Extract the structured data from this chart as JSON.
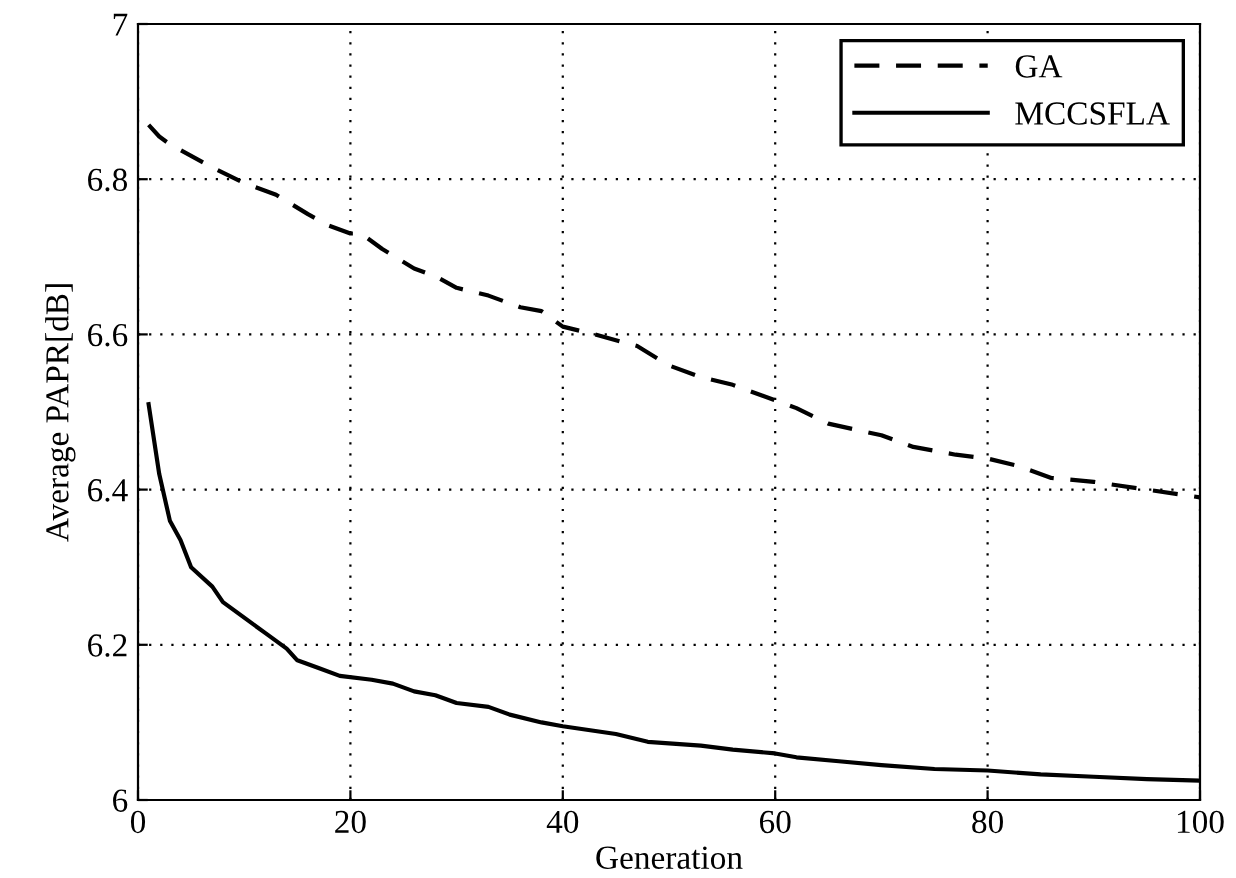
{
  "chart_data": {
    "type": "line",
    "xlabel": "Generation",
    "ylabel": "Average PAPR[dB]",
    "xlim": [
      0,
      100
    ],
    "ylim": [
      6,
      7
    ],
    "xticks": [
      0,
      20,
      40,
      60,
      80,
      100
    ],
    "yticks": [
      6,
      6.2,
      6.4,
      6.6,
      6.8,
      7
    ],
    "grid": true,
    "legend": "top right",
    "marker": "none",
    "series": [
      {
        "name": "GA",
        "color": "#000000",
        "line_style": "dashed",
        "x": [
          1,
          2,
          3,
          5,
          7,
          10,
          13,
          16,
          18,
          20,
          21,
          23,
          26,
          28,
          30,
          33,
          36,
          38,
          40,
          43,
          47,
          50,
          53,
          56,
          60,
          62,
          65,
          70,
          73,
          77,
          80,
          83,
          86,
          90,
          95,
          100
        ],
        "values": [
          6.87,
          6.855,
          6.845,
          6.83,
          6.815,
          6.795,
          6.78,
          6.755,
          6.74,
          6.73,
          6.73,
          6.71,
          6.685,
          6.675,
          6.66,
          6.65,
          6.635,
          6.63,
          6.61,
          6.6,
          6.585,
          6.56,
          6.545,
          6.535,
          6.515,
          6.505,
          6.485,
          6.47,
          6.455,
          6.445,
          6.44,
          6.43,
          6.415,
          6.41,
          6.4,
          6.39
        ]
      },
      {
        "name": "MCCSFLA",
        "color": "#000000",
        "line_style": "solid",
        "x": [
          1,
          2,
          3,
          4,
          5,
          7,
          8,
          10,
          12,
          14,
          15,
          17,
          19,
          22,
          24,
          26,
          28,
          30,
          33,
          35,
          38,
          40,
          45,
          48,
          53,
          56,
          60,
          62,
          66,
          70,
          75,
          80,
          85,
          90,
          95,
          100
        ],
        "values": [
          6.51,
          6.42,
          6.36,
          6.335,
          6.3,
          6.275,
          6.255,
          6.235,
          6.215,
          6.195,
          6.18,
          6.17,
          6.16,
          6.155,
          6.15,
          6.14,
          6.135,
          6.125,
          6.12,
          6.11,
          6.1,
          6.095,
          6.085,
          6.075,
          6.07,
          6.065,
          6.06,
          6.055,
          6.05,
          6.045,
          6.04,
          6.038,
          6.033,
          6.03,
          6.027,
          6.025
        ]
      }
    ]
  }
}
